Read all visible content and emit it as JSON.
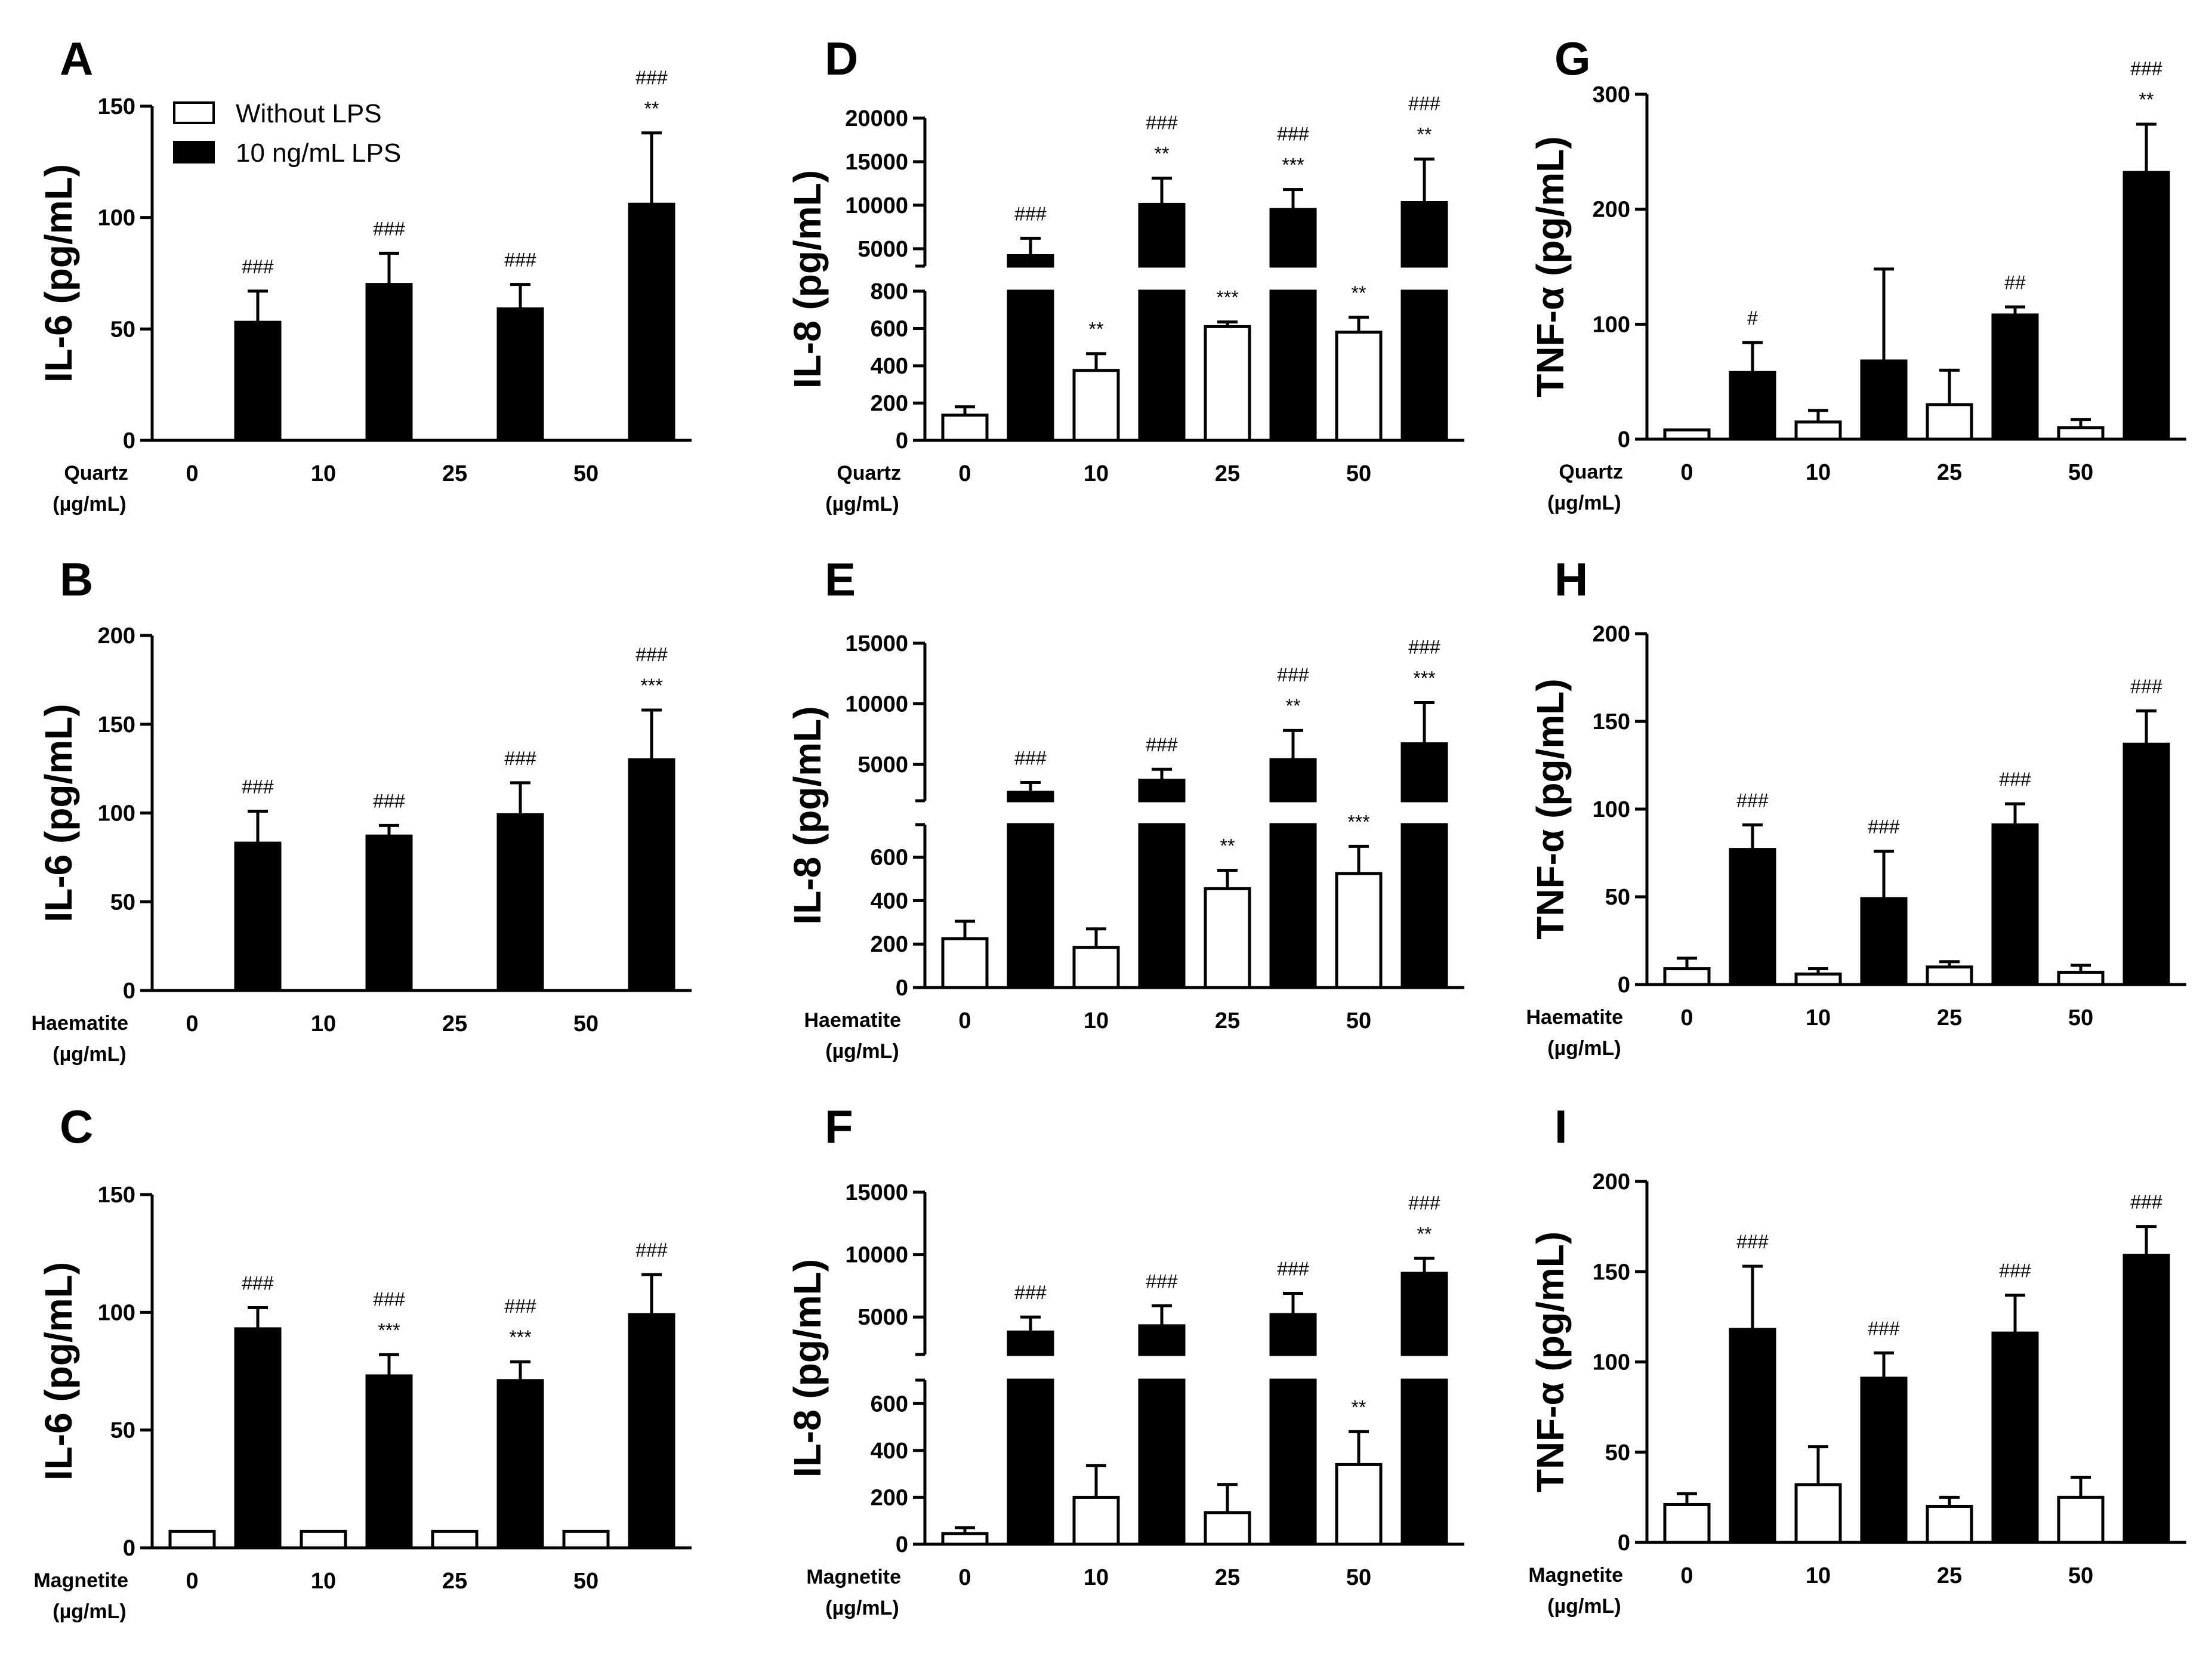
{
  "colors": {
    "lps_bar": "#000000",
    "nolps_bar": "#ffffff",
    "axis": "#000000"
  },
  "legend": {
    "without_lps": "Without LPS",
    "with_lps": "10 ng/mL LPS"
  },
  "chart_data": [
    {
      "id": "A",
      "type": "bar",
      "ylabel": "IL-6 (pg/mL)",
      "mineral": "Quartz",
      "unit": "(µg/mL)",
      "categories": [
        "0",
        "10",
        "25",
        "50"
      ],
      "ylim": [
        0,
        150
      ],
      "yticks": [
        "0",
        "50",
        "100",
        "150"
      ],
      "broken": false,
      "series": [
        {
          "name": "Without LPS",
          "values": [
            0,
            0,
            0,
            0
          ],
          "errors": [
            0,
            0,
            0,
            0
          ],
          "sig": [
            [],
            [],
            [],
            []
          ]
        },
        {
          "name": "10 ng/mL LPS",
          "values": [
            53,
            70,
            59,
            106
          ],
          "errors": [
            14,
            14,
            11,
            32
          ],
          "sig": [
            [
              "###"
            ],
            [
              "###"
            ],
            [
              "###"
            ],
            [
              "###",
              "**"
            ]
          ]
        }
      ]
    },
    {
      "id": "B",
      "type": "bar",
      "ylabel": "IL-6 (pg/mL)",
      "mineral": "Haematite",
      "unit": "(µg/mL)",
      "categories": [
        "0",
        "10",
        "25",
        "50"
      ],
      "ylim": [
        0,
        200
      ],
      "yticks": [
        "0",
        "50",
        "100",
        "150",
        "200"
      ],
      "broken": false,
      "series": [
        {
          "name": "Without LPS",
          "values": [
            0,
            0,
            0,
            0
          ],
          "errors": [
            0,
            0,
            0,
            0
          ],
          "sig": [
            [],
            [],
            [],
            []
          ]
        },
        {
          "name": "10 ng/mL LPS",
          "values": [
            83,
            87,
            99,
            130
          ],
          "errors": [
            18,
            6,
            18,
            28
          ],
          "sig": [
            [
              "###"
            ],
            [
              "###"
            ],
            [
              "###"
            ],
            [
              "###",
              "***"
            ]
          ]
        }
      ]
    },
    {
      "id": "C",
      "type": "bar",
      "ylabel": "IL-6 (pg/mL)",
      "mineral": "Magnetite",
      "unit": "(µg/mL)",
      "categories": [
        "0",
        "10",
        "25",
        "50"
      ],
      "ylim": [
        0,
        150
      ],
      "yticks": [
        "0",
        "50",
        "100",
        "150"
      ],
      "broken": false,
      "series": [
        {
          "name": "Without LPS",
          "values": [
            7,
            7,
            7,
            7
          ],
          "errors": [
            0,
            0,
            0,
            0
          ],
          "sig": [
            [],
            [],
            [],
            []
          ]
        },
        {
          "name": "10 ng/mL LPS",
          "values": [
            93,
            73,
            71,
            99
          ],
          "errors": [
            9,
            9,
            8,
            17
          ],
          "sig": [
            [
              "###"
            ],
            [
              "###",
              "***"
            ],
            [
              "###",
              "***"
            ],
            [
              "###"
            ]
          ]
        }
      ]
    },
    {
      "id": "D",
      "type": "bar",
      "ylabel": "IL-8 (pg/mL)",
      "mineral": "Quartz",
      "unit": "(µg/mL)",
      "categories": [
        "0",
        "10",
        "25",
        "50"
      ],
      "broken": true,
      "lower": {
        "max": 800,
        "ticks": [
          "0",
          "200",
          "400",
          "600",
          "800"
        ]
      },
      "upper": {
        "min": 3000,
        "max": 20000,
        "ticks": [
          "5000",
          "10000",
          "15000",
          "20000"
        ]
      },
      "series": [
        {
          "name": "Without LPS",
          "values": [
            135,
            375,
            610,
            580
          ],
          "errors": [
            45,
            90,
            25,
            80
          ],
          "sig": [
            [],
            [
              "**"
            ],
            [
              "***"
            ],
            [
              "**"
            ]
          ]
        },
        {
          "name": "10 ng/mL LPS",
          "values": [
            4200,
            10100,
            9500,
            10300
          ],
          "errors": [
            2000,
            3000,
            2300,
            5000
          ],
          "sig": [
            [
              "###"
            ],
            [
              "###",
              "**"
            ],
            [
              "###",
              "***"
            ],
            [
              "###",
              "**"
            ]
          ]
        }
      ]
    },
    {
      "id": "E",
      "type": "bar",
      "ylabel": "IL-8 (pg/mL)",
      "mineral": "Haematite",
      "unit": "(µg/mL)",
      "categories": [
        "0",
        "10",
        "25",
        "50"
      ],
      "broken": true,
      "lower": {
        "max": 750,
        "ticks": [
          "0",
          "200",
          "400",
          "600"
        ]
      },
      "upper": {
        "min": 2000,
        "max": 15000,
        "ticks": [
          "5000",
          "10000",
          "15000"
        ]
      },
      "series": [
        {
          "name": "Without LPS",
          "values": [
            225,
            185,
            455,
            525
          ],
          "errors": [
            80,
            85,
            85,
            125
          ],
          "sig": [
            [],
            [],
            [
              "**"
            ],
            [
              "***"
            ]
          ]
        },
        {
          "name": "10 ng/mL LPS",
          "values": [
            2700,
            3700,
            5400,
            6700
          ],
          "errors": [
            800,
            900,
            2400,
            3400
          ],
          "sig": [
            [
              "###"
            ],
            [
              "###"
            ],
            [
              "###",
              "**"
            ],
            [
              "###",
              "***"
            ]
          ]
        }
      ]
    },
    {
      "id": "F",
      "type": "bar",
      "ylabel": "IL-8 (pg/mL)",
      "mineral": "Magnetite",
      "unit": "(µg/mL)",
      "categories": [
        "0",
        "10",
        "25",
        "50"
      ],
      "broken": true,
      "lower": {
        "max": 700,
        "ticks": [
          "0",
          "200",
          "400",
          "600"
        ]
      },
      "upper": {
        "min": 2000,
        "max": 15000,
        "ticks": [
          "5000",
          "10000",
          "15000"
        ]
      },
      "series": [
        {
          "name": "Without LPS",
          "values": [
            45,
            200,
            135,
            340
          ],
          "errors": [
            25,
            135,
            120,
            140
          ],
          "sig": [
            [],
            [],
            [],
            [
              "**"
            ]
          ]
        },
        {
          "name": "10 ng/mL LPS",
          "values": [
            3800,
            4300,
            5200,
            8500
          ],
          "errors": [
            1200,
            1600,
            1700,
            1200
          ],
          "sig": [
            [
              "###"
            ],
            [
              "###"
            ],
            [
              "###"
            ],
            [
              "###",
              "**"
            ]
          ]
        }
      ]
    },
    {
      "id": "G",
      "type": "bar",
      "ylabel": "TNF-α (pg/mL)",
      "mineral": "Quartz",
      "unit": "(µg/mL)",
      "categories": [
        "0",
        "10",
        "25",
        "50"
      ],
      "ylim": [
        0,
        300
      ],
      "yticks": [
        "0",
        "100",
        "200",
        "300"
      ],
      "broken": false,
      "series": [
        {
          "name": "Without LPS",
          "values": [
            8,
            15,
            30,
            10
          ],
          "errors": [
            0,
            10,
            30,
            7
          ],
          "sig": [
            [],
            [],
            [],
            []
          ]
        },
        {
          "name": "10 ng/mL LPS",
          "values": [
            58,
            68,
            108,
            232
          ],
          "errors": [
            26,
            80,
            7,
            42
          ],
          "sig": [
            [
              "#"
            ],
            [],
            [
              "##"
            ],
            [
              "###",
              "**"
            ]
          ]
        }
      ]
    },
    {
      "id": "H",
      "type": "bar",
      "ylabel": "TNF-α (pg/mL)",
      "mineral": "Haematite",
      "unit": "(µg/mL)",
      "categories": [
        "0",
        "10",
        "25",
        "50"
      ],
      "ylim": [
        0,
        200
      ],
      "yticks": [
        "0",
        "50",
        "100",
        "150",
        "200"
      ],
      "broken": false,
      "series": [
        {
          "name": "Without LPS",
          "values": [
            9,
            6,
            10,
            7
          ],
          "errors": [
            6,
            3,
            3,
            4
          ],
          "sig": [
            [],
            [],
            [],
            []
          ]
        },
        {
          "name": "10 ng/mL LPS",
          "values": [
            77,
            49,
            91,
            137
          ],
          "errors": [
            14,
            27,
            12,
            19
          ],
          "sig": [
            [
              "###"
            ],
            [
              "###"
            ],
            [
              "###"
            ],
            [
              "###"
            ]
          ]
        }
      ]
    },
    {
      "id": "I",
      "type": "bar",
      "ylabel": "TNF-α (pg/mL)",
      "mineral": "Magnetite",
      "unit": "(µg/mL)",
      "categories": [
        "0",
        "10",
        "25",
        "50"
      ],
      "ylim": [
        0,
        200
      ],
      "yticks": [
        "0",
        "50",
        "100",
        "150",
        "200"
      ],
      "broken": false,
      "series": [
        {
          "name": "Without LPS",
          "values": [
            21,
            32,
            20,
            25
          ],
          "errors": [
            6,
            21,
            5,
            11
          ],
          "sig": [
            [],
            [],
            [],
            []
          ]
        },
        {
          "name": "10 ng/mL LPS",
          "values": [
            118,
            91,
            116,
            159
          ],
          "errors": [
            35,
            14,
            21,
            16
          ],
          "sig": [
            [
              "###"
            ],
            [
              "###"
            ],
            [
              "###"
            ],
            [
              "###"
            ]
          ]
        }
      ]
    }
  ]
}
